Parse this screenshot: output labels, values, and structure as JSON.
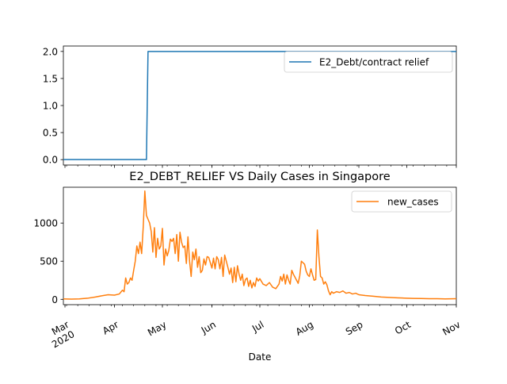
{
  "chart_data": [
    {
      "type": "line",
      "title": "",
      "xlabel": "",
      "ylabel": "",
      "x_range": [
        "2020-02-29",
        "2020-11-01"
      ],
      "ylim": [
        -0.1,
        2.1
      ],
      "yticks": [
        "0.0",
        "0.5",
        "1.0",
        "1.5",
        "2.0"
      ],
      "legend": "top-right",
      "grid": false,
      "series": [
        {
          "name": "E2_Debt/contract relief",
          "color": "#1f77b4",
          "points": [
            [
              "2020-02-29",
              0
            ],
            [
              "2020-04-21",
              0
            ],
            [
              "2020-04-22",
              2
            ],
            [
              "2020-11-01",
              2
            ]
          ]
        }
      ]
    },
    {
      "type": "line",
      "title": "E2_DEBT_RELIEF VS Daily Cases in Singapore",
      "xlabel": "Date",
      "ylabel": "",
      "x_range": [
        "2020-02-29",
        "2020-11-01"
      ],
      "ylim": [
        -70,
        1470
      ],
      "yticks": [
        "0",
        "500",
        "1000"
      ],
      "xticks": [
        {
          "date": "2020-03-01",
          "label": "Mar",
          "sublabel": "2020"
        },
        {
          "date": "2020-04-01",
          "label": "Apr",
          "sublabel": ""
        },
        {
          "date": "2020-05-01",
          "label": "May",
          "sublabel": ""
        },
        {
          "date": "2020-06-01",
          "label": "Jun",
          "sublabel": ""
        },
        {
          "date": "2020-07-01",
          "label": "Jul",
          "sublabel": ""
        },
        {
          "date": "2020-08-01",
          "label": "Aug",
          "sublabel": ""
        },
        {
          "date": "2020-09-01",
          "label": "Sep",
          "sublabel": ""
        },
        {
          "date": "2020-10-01",
          "label": "Oct",
          "sublabel": ""
        },
        {
          "date": "2020-11-01",
          "label": "Nov",
          "sublabel": ""
        }
      ],
      "legend": "top-right",
      "grid": false,
      "series": [
        {
          "name": "new_cases",
          "color": "#ff7f0e",
          "points": [
            [
              "2020-02-29",
              5
            ],
            [
              "2020-03-05",
              3
            ],
            [
              "2020-03-10",
              6
            ],
            [
              "2020-03-15",
              14
            ],
            [
              "2020-03-20",
              30
            ],
            [
              "2020-03-25",
              50
            ],
            [
              "2020-03-28",
              60
            ],
            [
              "2020-04-01",
              55
            ],
            [
              "2020-04-04",
              70
            ],
            [
              "2020-04-06",
              120
            ],
            [
              "2020-04-07",
              100
            ],
            [
              "2020-04-08",
              280
            ],
            [
              "2020-04-09",
              200
            ],
            [
              "2020-04-10",
              220
            ],
            [
              "2020-04-11",
              280
            ],
            [
              "2020-04-12",
              250
            ],
            [
              "2020-04-13",
              380
            ],
            [
              "2020-04-14",
              500
            ],
            [
              "2020-04-15",
              700
            ],
            [
              "2020-04-16",
              600
            ],
            [
              "2020-04-17",
              750
            ],
            [
              "2020-04-18",
              600
            ],
            [
              "2020-04-19",
              950
            ],
            [
              "2020-04-20",
              1420
            ],
            [
              "2020-04-21",
              1100
            ],
            [
              "2020-04-22",
              1050
            ],
            [
              "2020-04-23",
              1000
            ],
            [
              "2020-04-24",
              890
            ],
            [
              "2020-04-25",
              620
            ],
            [
              "2020-04-26",
              940
            ],
            [
              "2020-04-27",
              550
            ],
            [
              "2020-04-28",
              800
            ],
            [
              "2020-04-29",
              660
            ],
            [
              "2020-04-30",
              700
            ],
            [
              "2020-05-01",
              930
            ],
            [
              "2020-05-02",
              450
            ],
            [
              "2020-05-03",
              660
            ],
            [
              "2020-05-04",
              570
            ],
            [
              "2020-05-05",
              640
            ],
            [
              "2020-05-06",
              790
            ],
            [
              "2020-05-07",
              760
            ],
            [
              "2020-05-08",
              800
            ],
            [
              "2020-05-09",
              600
            ],
            [
              "2020-05-10",
              850
            ],
            [
              "2020-05-11",
              500
            ],
            [
              "2020-05-12",
              880
            ],
            [
              "2020-05-13",
              750
            ],
            [
              "2020-05-14",
              680
            ],
            [
              "2020-05-15",
              700
            ],
            [
              "2020-05-16",
              470
            ],
            [
              "2020-05-17",
              820
            ],
            [
              "2020-05-18",
              500
            ],
            [
              "2020-05-19",
              300
            ],
            [
              "2020-05-20",
              620
            ],
            [
              "2020-05-21",
              520
            ],
            [
              "2020-05-22",
              660
            ],
            [
              "2020-05-23",
              420
            ],
            [
              "2020-05-24",
              560
            ],
            [
              "2020-05-25",
              350
            ],
            [
              "2020-05-26",
              380
            ],
            [
              "2020-05-27",
              530
            ],
            [
              "2020-05-28",
              450
            ],
            [
              "2020-05-29",
              560
            ],
            [
              "2020-05-30",
              550
            ],
            [
              "2020-06-01",
              410
            ],
            [
              "2020-06-02",
              540
            ],
            [
              "2020-06-03",
              400
            ],
            [
              "2020-06-04",
              560
            ],
            [
              "2020-06-05",
              520
            ],
            [
              "2020-06-06",
              400
            ],
            [
              "2020-06-07",
              550
            ],
            [
              "2020-06-08",
              300
            ],
            [
              "2020-06-09",
              580
            ],
            [
              "2020-06-10",
              500
            ],
            [
              "2020-06-11",
              420
            ],
            [
              "2020-06-12",
              330
            ],
            [
              "2020-06-13",
              410
            ],
            [
              "2020-06-14",
              220
            ],
            [
              "2020-06-15",
              420
            ],
            [
              "2020-06-16",
              230
            ],
            [
              "2020-06-17",
              440
            ],
            [
              "2020-06-18",
              330
            ],
            [
              "2020-06-19",
              250
            ],
            [
              "2020-06-20",
              330
            ],
            [
              "2020-06-21",
              180
            ],
            [
              "2020-06-22",
              260
            ],
            [
              "2020-06-23",
              280
            ],
            [
              "2020-06-24",
              170
            ],
            [
              "2020-06-25",
              250
            ],
            [
              "2020-06-26",
              150
            ],
            [
              "2020-06-27",
              220
            ],
            [
              "2020-06-28",
              170
            ],
            [
              "2020-06-29",
              280
            ],
            [
              "2020-06-30",
              240
            ],
            [
              "2020-07-01",
              270
            ],
            [
              "2020-07-03",
              200
            ],
            [
              "2020-07-05",
              180
            ],
            [
              "2020-07-07",
              220
            ],
            [
              "2020-07-09",
              160
            ],
            [
              "2020-07-11",
              140
            ],
            [
              "2020-07-13",
              200
            ],
            [
              "2020-07-14",
              300
            ],
            [
              "2020-07-15",
              240
            ],
            [
              "2020-07-16",
              330
            ],
            [
              "2020-07-17",
              200
            ],
            [
              "2020-07-18",
              320
            ],
            [
              "2020-07-19",
              250
            ],
            [
              "2020-07-20",
              200
            ],
            [
              "2020-07-21",
              380
            ],
            [
              "2020-07-22",
              330
            ],
            [
              "2020-07-23",
              290
            ],
            [
              "2020-07-24",
              250
            ],
            [
              "2020-07-25",
              210
            ],
            [
              "2020-07-26",
              310
            ],
            [
              "2020-07-27",
              500
            ],
            [
              "2020-07-28",
              480
            ],
            [
              "2020-07-29",
              460
            ],
            [
              "2020-07-30",
              370
            ],
            [
              "2020-07-31",
              320
            ],
            [
              "2020-08-01",
              300
            ],
            [
              "2020-08-02",
              400
            ],
            [
              "2020-08-03",
              320
            ],
            [
              "2020-08-04",
              250
            ],
            [
              "2020-08-05",
              260
            ],
            [
              "2020-08-06",
              910
            ],
            [
              "2020-08-07",
              560
            ],
            [
              "2020-08-08",
              300
            ],
            [
              "2020-08-09",
              280
            ],
            [
              "2020-08-10",
              200
            ],
            [
              "2020-08-11",
              230
            ],
            [
              "2020-08-12",
              190
            ],
            [
              "2020-08-13",
              110
            ],
            [
              "2020-08-14",
              60
            ],
            [
              "2020-08-15",
              100
            ],
            [
              "2020-08-16",
              80
            ],
            [
              "2020-08-18",
              100
            ],
            [
              "2020-08-20",
              90
            ],
            [
              "2020-08-22",
              110
            ],
            [
              "2020-08-24",
              80
            ],
            [
              "2020-08-26",
              90
            ],
            [
              "2020-08-28",
              70
            ],
            [
              "2020-08-30",
              80
            ],
            [
              "2020-09-01",
              60
            ],
            [
              "2020-09-05",
              50
            ],
            [
              "2020-09-10",
              40
            ],
            [
              "2020-09-15",
              30
            ],
            [
              "2020-09-20",
              25
            ],
            [
              "2020-09-25",
              20
            ],
            [
              "2020-10-01",
              15
            ],
            [
              "2020-10-05",
              12
            ],
            [
              "2020-10-10",
              10
            ],
            [
              "2020-10-15",
              8
            ],
            [
              "2020-10-20",
              8
            ],
            [
              "2020-10-25",
              6
            ],
            [
              "2020-11-01",
              8
            ]
          ]
        }
      ]
    }
  ]
}
